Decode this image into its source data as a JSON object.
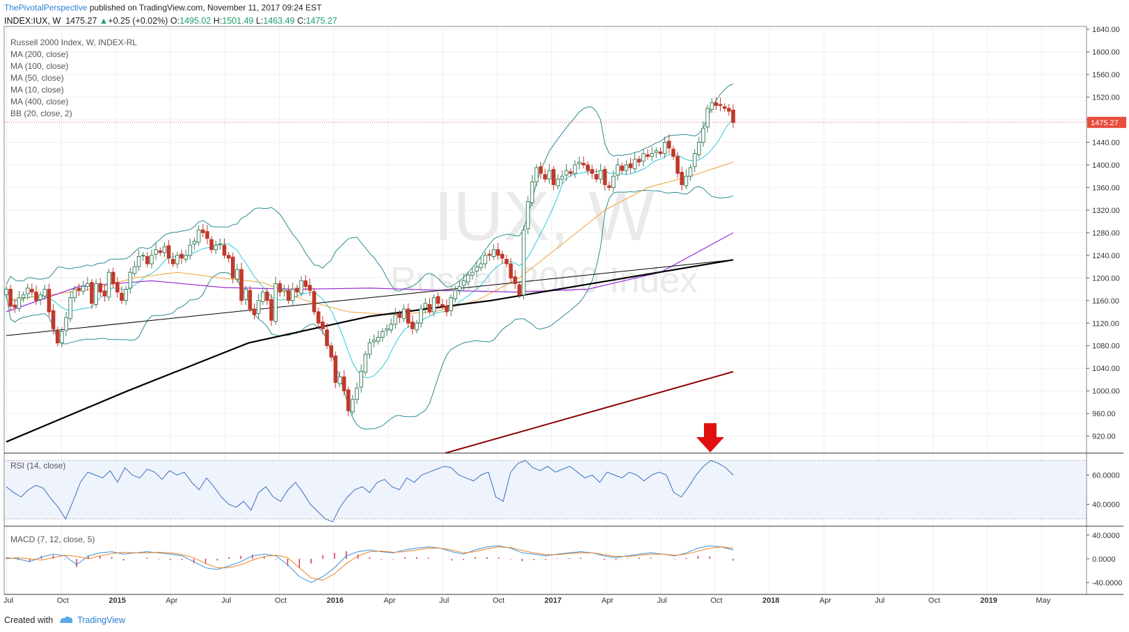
{
  "header": {
    "author": "ThePivotalPerspective",
    "published": "published on TradingView.com, November 11, 2017 09:24 EST",
    "symbol": "INDEX:IUX, W",
    "last": "1475.27",
    "change": "+0.25 (+0.02%)",
    "o_label": "O:",
    "o": "1495.02",
    "h_label": "H:",
    "h": "1501.49",
    "l_label": "L:",
    "l": "1463.49",
    "c_label": "C:",
    "c": "1475.27"
  },
  "legend": [
    "Russell 2000 Index, W, INDEX-RL",
    "MA (200, close)",
    "MA (100, close)",
    "MA (50, close)",
    "MA (10, close)",
    "MA (400, close)",
    "BB (20, close, 2)"
  ],
  "watermark": {
    "symbol": "IUX, W",
    "name": "Russell 2000 Index"
  },
  "footer": {
    "created": "Created with",
    "brand": "TradingView"
  },
  "colors": {
    "up": "#3f7f5f",
    "down": "#c0392b",
    "bb": "#2a8a94",
    "ma10": "#2ac8d8",
    "ma50": "#f0a030",
    "ma100": "#9b30d9",
    "ma200": "#000000",
    "ma400": "#000000",
    "ma_extra": "#8b0000",
    "rsi": "#3b6fbf",
    "macd": "#3b8fd9",
    "signal": "#f08020",
    "hist": "#d0305a",
    "price_label": "#e74c3c",
    "arrow": "#e01010"
  },
  "chart_data": [
    {
      "type": "candlestick",
      "title": "Russell 2000 Index",
      "timeframe": "W",
      "x_ticks": [
        "Jul",
        "Oct",
        "2015",
        "Apr",
        "Jul",
        "Oct",
        "2016",
        "Apr",
        "Jul",
        "Oct",
        "2017",
        "Apr",
        "Jul",
        "Oct",
        "2018",
        "Apr",
        "Jul",
        "Oct",
        "2019",
        "May"
      ],
      "y_ticks": [
        "1640.00",
        "1600.00",
        "1560.00",
        "1520.00",
        "1480.00",
        "1440.00",
        "1400.00",
        "1360.00",
        "1320.00",
        "1280.00",
        "1240.00",
        "1200.00",
        "1160.00",
        "1120.00",
        "1080.00",
        "1040.00",
        "1000.00",
        "960.00",
        "920.00"
      ],
      "ylim": [
        890,
        1645
      ],
      "last_price_label": "1475.27",
      "last_price": 1475.27,
      "close": [
        1180,
        1150,
        1148,
        1165,
        1170,
        1182,
        1175,
        1160,
        1170,
        1180,
        1140,
        1110,
        1085,
        1105,
        1130,
        1165,
        1180,
        1178,
        1185,
        1190,
        1155,
        1190,
        1175,
        1168,
        1210,
        1190,
        1175,
        1160,
        1180,
        1210,
        1220,
        1238,
        1240,
        1225,
        1240,
        1250,
        1245,
        1255,
        1235,
        1225,
        1240,
        1235,
        1240,
        1258,
        1265,
        1285,
        1280,
        1270,
        1250,
        1258,
        1260,
        1240,
        1235,
        1200,
        1215,
        1160,
        1180,
        1145,
        1135,
        1160,
        1175,
        1160,
        1125,
        1190,
        1175,
        1180,
        1160,
        1180,
        1175,
        1195,
        1185,
        1178,
        1140,
        1120,
        1110,
        1080,
        1060,
        1015,
        1025,
        1000,
        965,
        985,
        1005,
        1035,
        1065,
        1085,
        1090,
        1095,
        1105,
        1110,
        1118,
        1135,
        1130,
        1145,
        1120,
        1110,
        1120,
        1145,
        1155,
        1140,
        1165,
        1155,
        1150,
        1140,
        1165,
        1178,
        1185,
        1195,
        1205,
        1210,
        1220,
        1225,
        1240,
        1240,
        1250,
        1240,
        1235,
        1225,
        1200,
        1190,
        1170,
        1285,
        1335,
        1370,
        1395,
        1385,
        1375,
        1390,
        1365,
        1375,
        1380,
        1390,
        1385,
        1400,
        1405,
        1400,
        1390,
        1385,
        1375,
        1390,
        1365,
        1360,
        1380,
        1400,
        1390,
        1400,
        1395,
        1410,
        1405,
        1420,
        1415,
        1420,
        1425,
        1420,
        1440,
        1430,
        1415,
        1385,
        1365,
        1380,
        1395,
        1420,
        1440,
        1465,
        1500,
        1510,
        1505,
        1505,
        1500,
        1495,
        1475
      ],
      "series": [
        {
          "name": "MA (200, close)",
          "values": [
            1098,
            1232
          ]
        },
        {
          "name": "MA (100, close)",
          "values": [
            1140,
            1185,
            1195,
            1183,
            1180,
            1182,
            1178,
            1175,
            1180,
            1210,
            1280
          ]
        },
        {
          "name": "MA (50, close)",
          "values": [
            1160,
            1170,
            1180,
            1200,
            1210,
            1200,
            1192,
            1160,
            1140,
            1135,
            1140,
            1160,
            1200,
            1260,
            1320,
            1360,
            1380,
            1405
          ]
        },
        {
          "name": "MA (400, close)",
          "values": [
            910,
            1000,
            1085,
            1132,
            1160,
            1196,
            1232
          ]
        },
        {
          "name": "BB (20, close, 2)"
        }
      ]
    },
    {
      "type": "line",
      "title": "RSI (14, close)",
      "y_ticks": [
        "60.0000",
        "40.0000"
      ],
      "ylim": [
        25,
        75
      ],
      "values": [
        52,
        48,
        45,
        50,
        53,
        51,
        44,
        38,
        30,
        42,
        55,
        62,
        60,
        58,
        63,
        55,
        65,
        60,
        58,
        64,
        62,
        57,
        63,
        60,
        62,
        55,
        50,
        58,
        52,
        45,
        40,
        38,
        42,
        36,
        48,
        52,
        45,
        42,
        50,
        55,
        48,
        40,
        35,
        30,
        28,
        38,
        45,
        50,
        52,
        48,
        55,
        57,
        52,
        50,
        58,
        55,
        60,
        62,
        64,
        66,
        65,
        60,
        58,
        56,
        60,
        62,
        45,
        42,
        62,
        68,
        70,
        65,
        63,
        66,
        62,
        64,
        66,
        62,
        58,
        60,
        55,
        62,
        60,
        58,
        62,
        60,
        56,
        60,
        62,
        60,
        48,
        45,
        52,
        60,
        66,
        70,
        68,
        65,
        60
      ]
    },
    {
      "type": "line",
      "title": "MACD (7, 12, close, 5)",
      "y_ticks": [
        "40.0000",
        "0.0000",
        "-40.0000"
      ],
      "ylim": [
        -60,
        55
      ],
      "series": [
        {
          "name": "macd",
          "values": [
            2,
            0,
            -5,
            3,
            8,
            5,
            -10,
            5,
            10,
            12,
            8,
            10,
            12,
            10,
            8,
            5,
            -5,
            -15,
            -18,
            -12,
            -5,
            5,
            8,
            5,
            -10,
            -30,
            -40,
            -30,
            -15,
            5,
            12,
            15,
            12,
            10,
            15,
            18,
            20,
            18,
            12,
            8,
            15,
            20,
            22,
            18,
            10,
            8,
            5,
            8,
            10,
            12,
            10,
            5,
            2,
            5,
            8,
            10,
            8,
            5,
            10,
            18,
            22,
            20,
            15
          ]
        },
        {
          "name": "signal",
          "values": [
            0,
            2,
            0,
            -2,
            2,
            6,
            4,
            0,
            5,
            9,
            11,
            10,
            10,
            11,
            10,
            7,
            2,
            -8,
            -15,
            -15,
            -10,
            -2,
            4,
            6,
            2,
            -15,
            -32,
            -36,
            -25,
            -8,
            5,
            12,
            13,
            11,
            12,
            15,
            18,
            18,
            15,
            10,
            12,
            17,
            20,
            19,
            14,
            10,
            7,
            7,
            9,
            10,
            10,
            7,
            4,
            4,
            6,
            8,
            8,
            6,
            8,
            13,
            18,
            20,
            18
          ]
        }
      ]
    }
  ]
}
